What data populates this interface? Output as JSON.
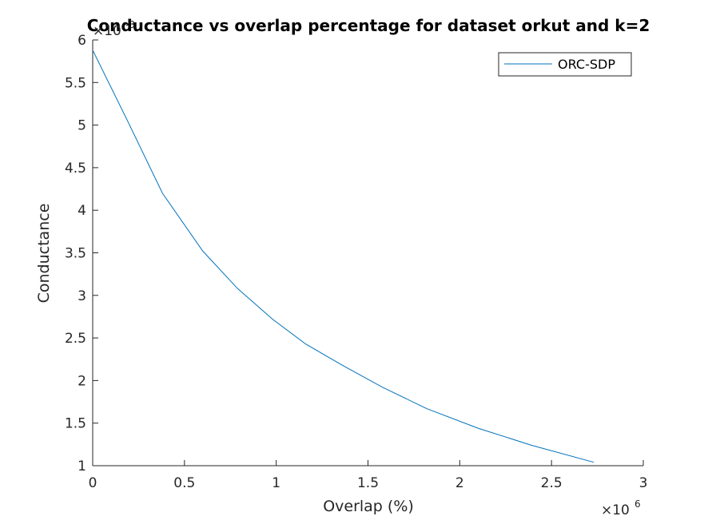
{
  "chart_data": {
    "type": "line",
    "title": "Conductance vs overlap percentage for dataset orkut and k=2",
    "xlabel": "Overlap (%)",
    "ylabel": "Conductance",
    "x_exponent": {
      "base": "×10",
      "power": "6"
    },
    "y_exponent": {
      "base": "×10",
      "power": "-3"
    },
    "xlim": [
      0,
      3
    ],
    "ylim": [
      1,
      6
    ],
    "x_ticks": [
      0,
      0.5,
      1,
      1.5,
      2,
      2.5,
      3
    ],
    "x_tick_labels": [
      "0",
      "0.5",
      "1",
      "1.5",
      "2",
      "2.5",
      "3"
    ],
    "y_ticks": [
      1,
      1.5,
      2,
      2.5,
      3,
      3.5,
      4,
      4.5,
      5,
      5.5,
      6
    ],
    "y_tick_labels": [
      "1",
      "1.5",
      "2",
      "2.5",
      "3",
      "3.5",
      "4",
      "4.5",
      "5",
      "5.5",
      "6"
    ],
    "grid": false,
    "legend_position": "top-right",
    "series": [
      {
        "name": "ORC-SDP",
        "color": "#0072bd",
        "x": [
          0,
          0.19,
          0.38,
          0.6,
          0.79,
          0.98,
          1.16,
          1.36,
          1.58,
          1.82,
          2.1,
          2.39,
          2.73
        ],
        "y": [
          5.88,
          5.05,
          4.2,
          3.52,
          3.08,
          2.72,
          2.43,
          2.18,
          1.92,
          1.67,
          1.44,
          1.24,
          1.04
        ]
      }
    ]
  }
}
